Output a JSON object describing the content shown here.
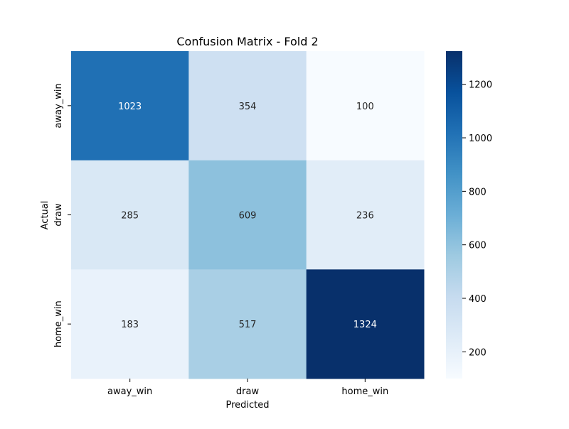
{
  "chart_data": {
    "type": "heatmap",
    "title": "Confusion Matrix - Fold 2",
    "xlabel": "Predicted",
    "ylabel": "Actual",
    "x_categories": [
      "away_win",
      "draw",
      "home_win"
    ],
    "y_categories": [
      "away_win",
      "draw",
      "home_win"
    ],
    "values": [
      [
        1023,
        354,
        100
      ],
      [
        285,
        609,
        236
      ],
      [
        183,
        517,
        1324
      ]
    ],
    "colormap": "Blues",
    "colorbar": {
      "min": 100,
      "max": 1324,
      "ticks": [
        200,
        400,
        600,
        800,
        1000,
        1200
      ]
    },
    "grid": false,
    "annotations": true
  }
}
